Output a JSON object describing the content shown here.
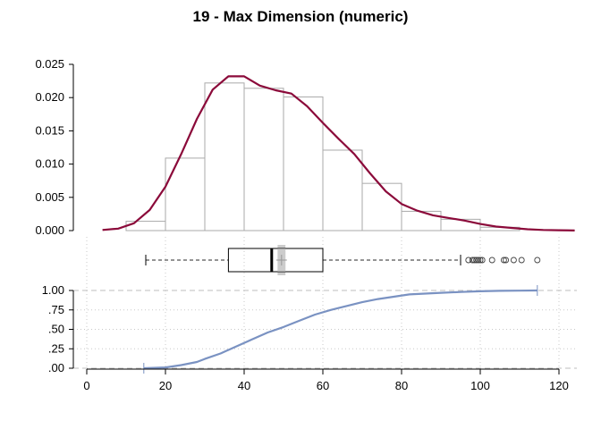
{
  "chart_data": {
    "type": "histogram+density+boxplot+ecdf",
    "title": "19 - Max Dimension (numeric)",
    "x_axis": {
      "range": [
        -5,
        125
      ],
      "ticks": [
        0,
        20,
        40,
        60,
        80,
        100,
        120
      ]
    },
    "histogram": {
      "bin_edges": [
        10,
        20,
        30,
        40,
        50,
        60,
        70,
        80,
        90,
        100,
        110
      ],
      "densities": [
        0.0014,
        0.0109,
        0.0222,
        0.0214,
        0.0201,
        0.0121,
        0.0071,
        0.0029,
        0.0017,
        0.0005
      ],
      "ylim": [
        0,
        0.025
      ],
      "y_ticks": [
        "0.000",
        "0.005",
        "0.010",
        "0.015",
        "0.020",
        "0.025"
      ],
      "y_tick_values": [
        0,
        0.005,
        0.01,
        0.015,
        0.02,
        0.025
      ],
      "bar_color": "#aaaaaa"
    },
    "density": {
      "color": "#8b0a3a",
      "x": [
        4,
        8,
        12,
        16,
        20,
        24,
        28,
        32,
        36,
        40,
        44,
        48,
        52,
        56,
        60,
        64,
        68,
        72,
        76,
        80,
        84,
        88,
        92,
        96,
        100,
        104,
        108,
        112,
        116,
        120,
        124
      ],
      "y": [
        0.0001,
        0.0003,
        0.0011,
        0.0031,
        0.0066,
        0.0115,
        0.0168,
        0.0212,
        0.0232,
        0.0232,
        0.0218,
        0.0211,
        0.0206,
        0.0187,
        0.0162,
        0.0138,
        0.0115,
        0.0086,
        0.0059,
        0.004,
        0.003,
        0.0023,
        0.0019,
        0.0015,
        0.001,
        0.0006,
        0.0004,
        0.0002,
        0.0001,
        5e-05,
        2e-05
      ]
    },
    "boxplot": {
      "whisker_low": 15,
      "q1": 36,
      "median": 47,
      "q3": 60,
      "whisker_high": 95,
      "mean": 49.5,
      "outliers": [
        97,
        98,
        98.5,
        99,
        99.5,
        100,
        100.5,
        103,
        106,
        106.5,
        108.5,
        110.5,
        114.5
      ],
      "mean_ci": [
        48.5,
        50.5
      ]
    },
    "ecdf": {
      "color": "#7a92c2",
      "y_ticks": [
        "1.00",
        ".75",
        ".50",
        ".25",
        ".00"
      ],
      "y_tick_values": [
        1,
        0.75,
        0.5,
        0.25,
        0
      ],
      "x": [
        14.5,
        20,
        24,
        28,
        30,
        34,
        38,
        42,
        46,
        50,
        54,
        58,
        62,
        66,
        70,
        74,
        78,
        82,
        86,
        90,
        95,
        100,
        105,
        110,
        114.5
      ],
      "y": [
        0,
        0.01,
        0.04,
        0.08,
        0.12,
        0.19,
        0.28,
        0.37,
        0.46,
        0.53,
        0.61,
        0.69,
        0.75,
        0.8,
        0.85,
        0.89,
        0.92,
        0.95,
        0.96,
        0.97,
        0.98,
        0.99,
        0.995,
        0.998,
        1
      ]
    }
  }
}
